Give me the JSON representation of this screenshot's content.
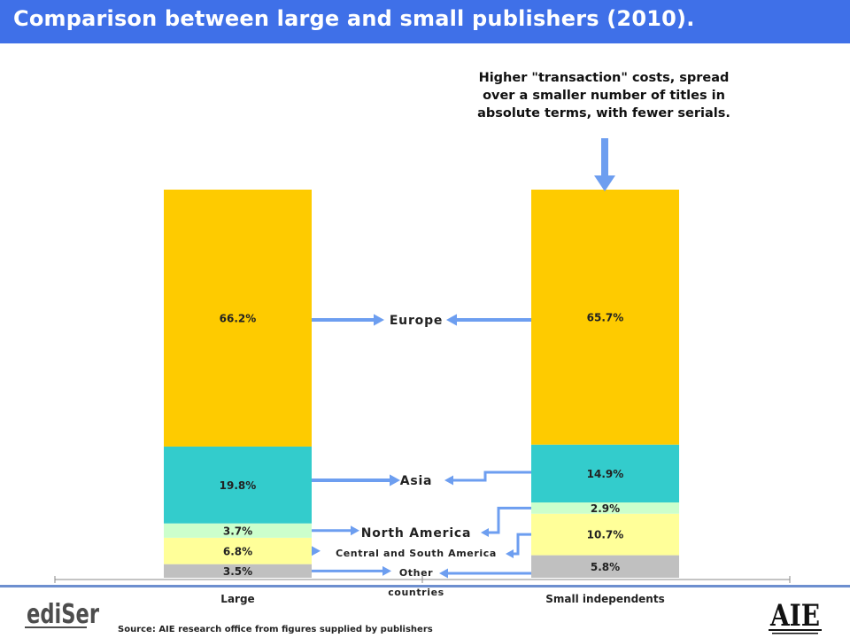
{
  "title": "Comparison between large and small publishers (2010).",
  "annotation": "Higher \"transaction\" costs, spread over a smaller number of titles in absolute terms, with fewer serials.",
  "annotation_lines": [
    "Higher \"transaction\" costs, spread",
    "over a smaller number of titles in",
    "absolute terms, with fewer serials."
  ],
  "source": "Source: AIE research office from figures supplied by publishers",
  "logos": {
    "left": "ediSer",
    "right": "AIE"
  },
  "colors": {
    "title_bar": "#3f70e8",
    "arrow": "#6d9ef0",
    "Europe": "#fecb00",
    "Asia": "#33cccc",
    "North America": "#ccffcc",
    "Central and South America": "#ffff99",
    "Other countries": "#c0c0c0"
  },
  "chart_data": {
    "type": "bar",
    "stacked": true,
    "percent_stacked": true,
    "categories": [
      "Large",
      "Small independents"
    ],
    "series": [
      {
        "name": "Other countries",
        "label_lines": [
          "Other",
          "countries"
        ],
        "values": [
          3.5,
          5.8
        ],
        "labels": [
          "3.5%",
          "5.8%"
        ]
      },
      {
        "name": "Central and South America",
        "label_lines": [
          "Central and South America"
        ],
        "values": [
          6.8,
          10.7
        ],
        "labels": [
          "6.8%",
          "10.7%"
        ]
      },
      {
        "name": "North America",
        "label_lines": [
          "North America"
        ],
        "values": [
          3.7,
          2.9
        ],
        "labels": [
          "3.7%",
          "2.9%"
        ]
      },
      {
        "name": "Asia",
        "label_lines": [
          "Asia"
        ],
        "values": [
          19.8,
          14.9
        ],
        "labels": [
          "19.8%",
          "14.9%"
        ]
      },
      {
        "name": "Europe",
        "label_lines": [
          "Europe"
        ],
        "values": [
          66.2,
          65.7
        ],
        "labels": [
          "66.2%",
          "65.7%"
        ]
      }
    ],
    "ylim": [
      0,
      100
    ],
    "grid": false,
    "legend": "center between bars"
  }
}
